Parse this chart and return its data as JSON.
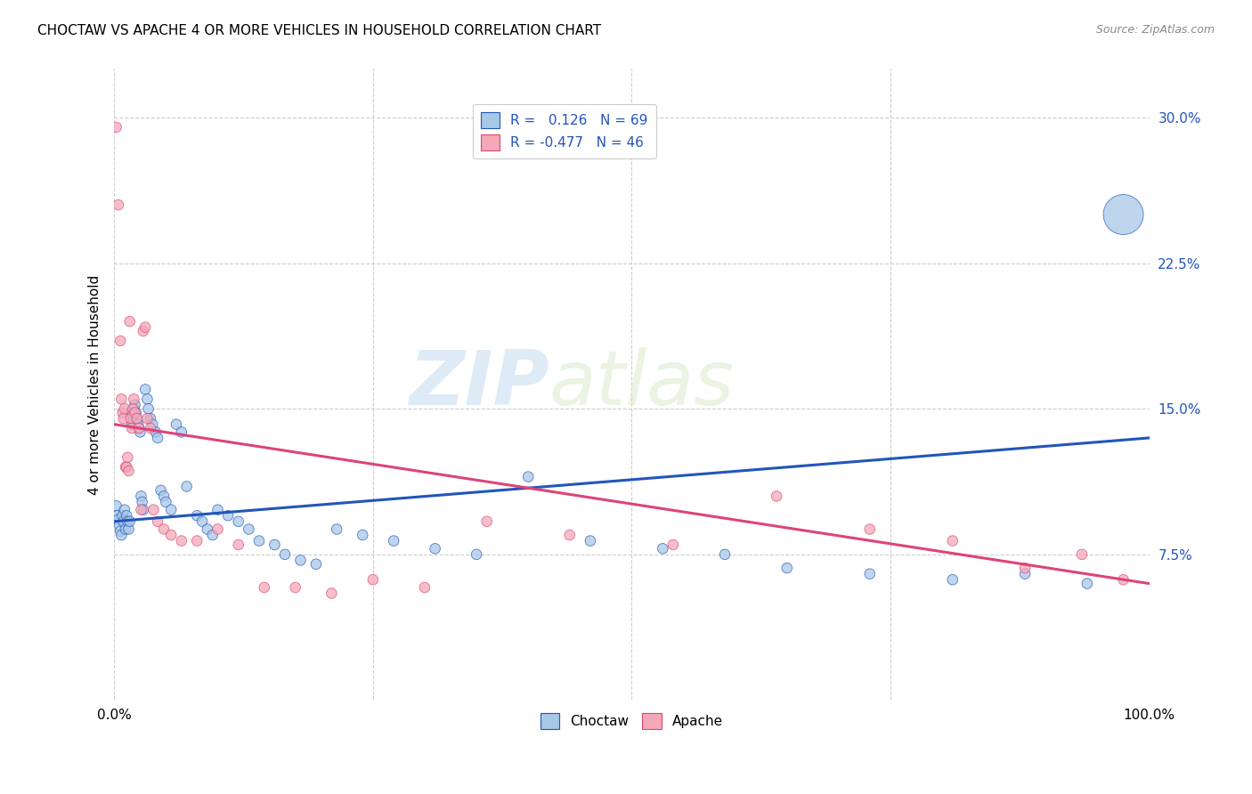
{
  "title": "CHOCTAW VS APACHE 4 OR MORE VEHICLES IN HOUSEHOLD CORRELATION CHART",
  "source": "Source: ZipAtlas.com",
  "ylabel": "4 or more Vehicles in Household",
  "xlim": [
    0.0,
    1.0
  ],
  "ylim": [
    0.0,
    0.325
  ],
  "yticks": [
    0.075,
    0.15,
    0.225,
    0.3
  ],
  "yticklabels": [
    "7.5%",
    "15.0%",
    "22.5%",
    "30.0%"
  ],
  "xtick_positions": [
    0.0,
    0.25,
    0.5,
    0.75,
    1.0
  ],
  "xticklabels": [
    "0.0%",
    "",
    "",
    "",
    "100.0%"
  ],
  "choctaw_color": "#a8c8e8",
  "apache_color": "#f4a8b8",
  "trend_choctaw_color": "#2255bb",
  "trend_apache_color": "#dd4477",
  "watermark_zip": "ZIP",
  "watermark_atlas": "atlas",
  "choctaw_r": 0.126,
  "choctaw_n": 69,
  "apache_r": -0.477,
  "apache_n": 46,
  "choctaw_trend_x0": 0.0,
  "choctaw_trend_y0": 0.092,
  "choctaw_trend_x1": 1.0,
  "choctaw_trend_y1": 0.135,
  "apache_trend_x0": 0.0,
  "apache_trend_y0": 0.142,
  "apache_trend_x1": 1.0,
  "apache_trend_y1": 0.06,
  "choctaw_x": [
    0.002,
    0.003,
    0.004,
    0.005,
    0.006,
    0.007,
    0.008,
    0.009,
    0.01,
    0.011,
    0.012,
    0.013,
    0.014,
    0.015,
    0.016,
    0.017,
    0.018,
    0.019,
    0.02,
    0.021,
    0.022,
    0.023,
    0.024,
    0.025,
    0.026,
    0.027,
    0.028,
    0.03,
    0.032,
    0.033,
    0.035,
    0.037,
    0.04,
    0.042,
    0.045,
    0.048,
    0.05,
    0.055,
    0.06,
    0.065,
    0.07,
    0.08,
    0.085,
    0.09,
    0.095,
    0.1,
    0.11,
    0.12,
    0.13,
    0.14,
    0.155,
    0.165,
    0.18,
    0.195,
    0.215,
    0.24,
    0.27,
    0.31,
    0.35,
    0.4,
    0.46,
    0.53,
    0.59,
    0.65,
    0.73,
    0.81,
    0.88,
    0.94,
    0.975
  ],
  "choctaw_y": [
    0.1,
    0.095,
    0.093,
    0.09,
    0.087,
    0.085,
    0.095,
    0.092,
    0.098,
    0.088,
    0.095,
    0.092,
    0.088,
    0.092,
    0.148,
    0.142,
    0.145,
    0.15,
    0.152,
    0.148,
    0.145,
    0.142,
    0.14,
    0.138,
    0.105,
    0.102,
    0.098,
    0.16,
    0.155,
    0.15,
    0.145,
    0.142,
    0.138,
    0.135,
    0.108,
    0.105,
    0.102,
    0.098,
    0.142,
    0.138,
    0.11,
    0.095,
    0.092,
    0.088,
    0.085,
    0.098,
    0.095,
    0.092,
    0.088,
    0.082,
    0.08,
    0.075,
    0.072,
    0.07,
    0.088,
    0.085,
    0.082,
    0.078,
    0.075,
    0.115,
    0.082,
    0.078,
    0.075,
    0.068,
    0.065,
    0.062,
    0.065,
    0.06,
    0.25
  ],
  "choctaw_sizes": [
    20,
    20,
    20,
    20,
    20,
    20,
    20,
    20,
    20,
    20,
    20,
    20,
    20,
    20,
    20,
    20,
    20,
    20,
    20,
    20,
    20,
    20,
    20,
    20,
    20,
    20,
    20,
    20,
    20,
    20,
    20,
    20,
    20,
    20,
    20,
    20,
    20,
    20,
    20,
    20,
    20,
    20,
    20,
    20,
    20,
    20,
    20,
    20,
    20,
    20,
    20,
    20,
    20,
    20,
    20,
    20,
    20,
    20,
    20,
    20,
    20,
    20,
    20,
    20,
    20,
    20,
    20,
    20,
    300
  ],
  "apache_x": [
    0.002,
    0.004,
    0.006,
    0.007,
    0.008,
    0.009,
    0.01,
    0.011,
    0.012,
    0.013,
    0.014,
    0.015,
    0.016,
    0.017,
    0.018,
    0.019,
    0.02,
    0.022,
    0.024,
    0.026,
    0.028,
    0.03,
    0.032,
    0.035,
    0.038,
    0.042,
    0.048,
    0.055,
    0.065,
    0.08,
    0.1,
    0.12,
    0.145,
    0.175,
    0.21,
    0.25,
    0.3,
    0.36,
    0.44,
    0.54,
    0.64,
    0.73,
    0.81,
    0.88,
    0.935,
    0.975
  ],
  "apache_y": [
    0.295,
    0.255,
    0.185,
    0.155,
    0.148,
    0.145,
    0.15,
    0.12,
    0.12,
    0.125,
    0.118,
    0.195,
    0.145,
    0.14,
    0.15,
    0.155,
    0.148,
    0.145,
    0.14,
    0.098,
    0.19,
    0.192,
    0.145,
    0.14,
    0.098,
    0.092,
    0.088,
    0.085,
    0.082,
    0.082,
    0.088,
    0.08,
    0.058,
    0.058,
    0.055,
    0.062,
    0.058,
    0.092,
    0.085,
    0.08,
    0.105,
    0.088,
    0.082,
    0.068,
    0.075,
    0.062
  ],
  "apache_sizes": [
    20,
    20,
    20,
    20,
    20,
    20,
    20,
    20,
    20,
    20,
    20,
    20,
    20,
    20,
    20,
    20,
    20,
    20,
    20,
    20,
    20,
    20,
    20,
    20,
    20,
    20,
    20,
    20,
    20,
    20,
    20,
    20,
    20,
    20,
    20,
    20,
    20,
    20,
    20,
    20,
    20,
    20,
    20,
    20,
    20,
    20
  ]
}
